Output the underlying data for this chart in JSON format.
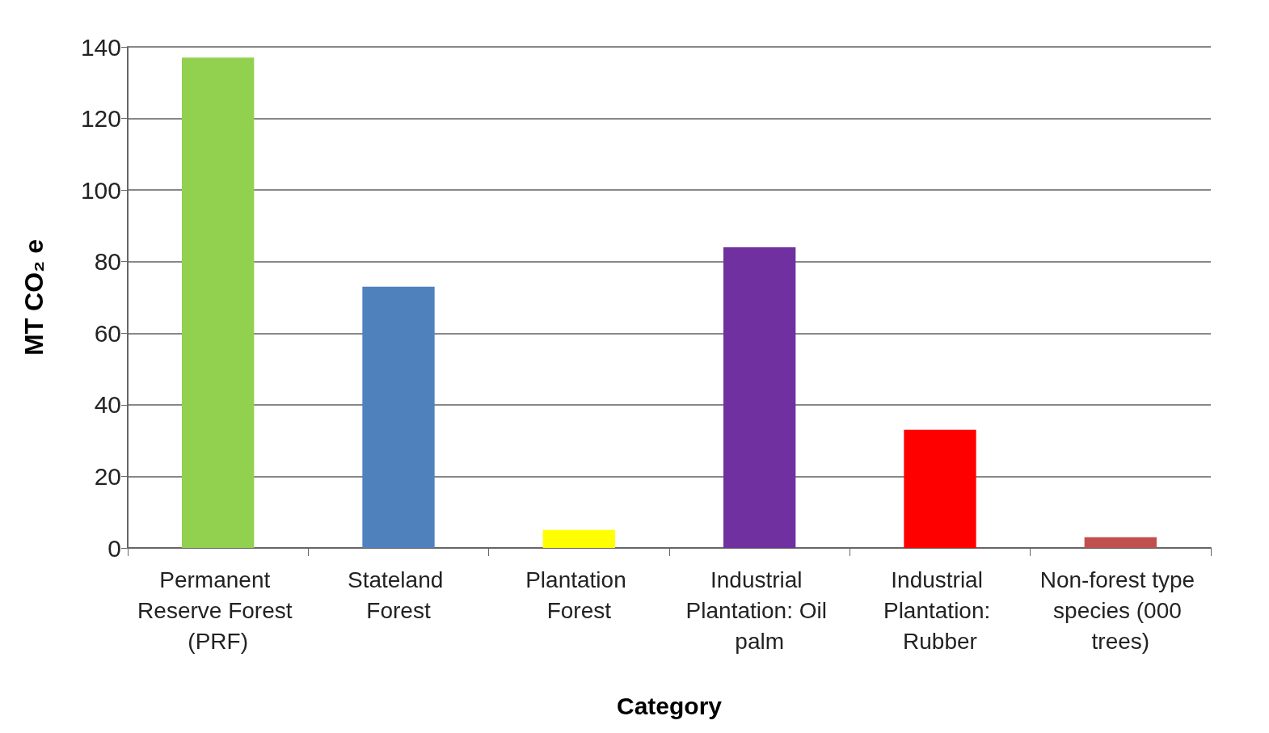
{
  "chart_data": {
    "type": "bar",
    "xlabel": "Category",
    "ylabel": "MT CO₂ e",
    "categories": [
      "Permanent Reserve Forest (PRF)",
      "Stateland Forest",
      "Plantation Forest",
      "Industrial Plantation: Oil palm",
      "Industrial Plantation: Rubber",
      "Non-forest type species (000 trees)"
    ],
    "values": [
      137,
      73,
      5,
      84,
      33,
      3
    ],
    "colors": [
      "#92d050",
      "#4f81bd",
      "#ffff00",
      "#7030a0",
      "#ff0000",
      "#c0504d"
    ],
    "ylim": [
      0,
      140
    ],
    "yticks": [
      0,
      20,
      40,
      60,
      80,
      100,
      120,
      140
    ],
    "grid": true
  }
}
